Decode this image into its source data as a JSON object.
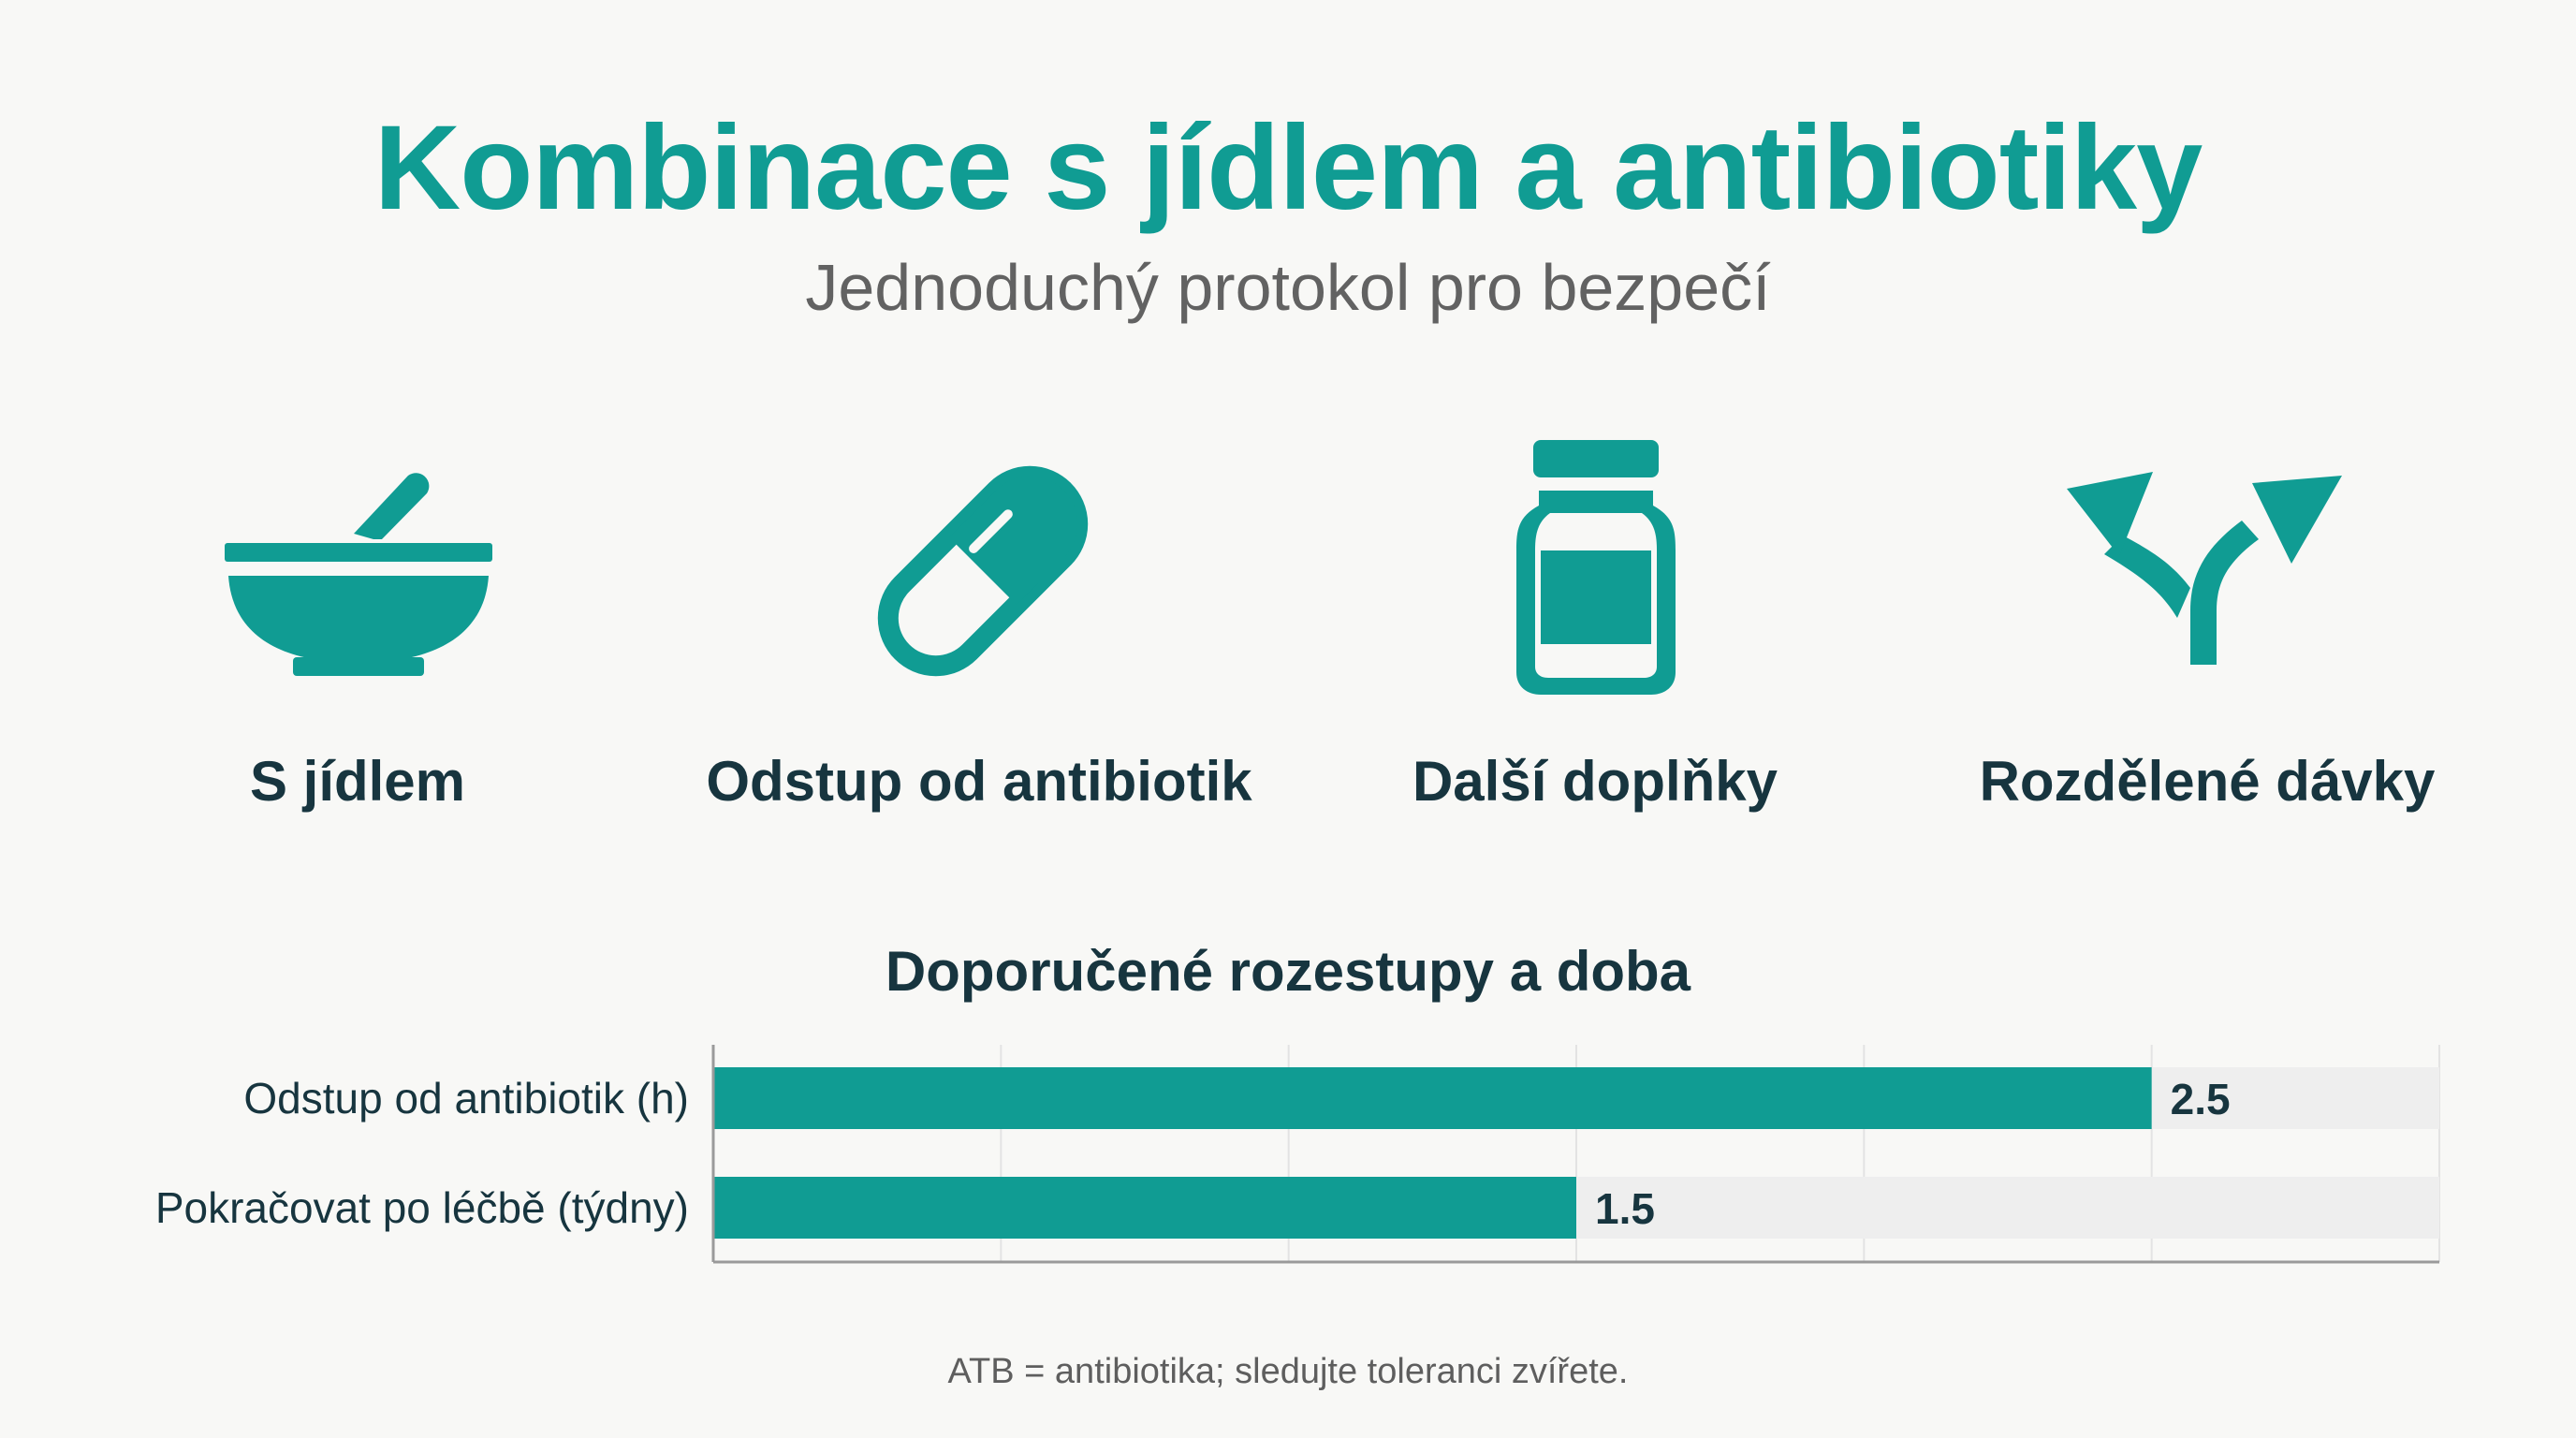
{
  "header": {
    "title": "Kombinace s jídlem a antibiotiky",
    "subtitle": "Jednoduchý protokol pro bezpečí"
  },
  "features": [
    {
      "label": "S jídlem",
      "icon": "bowl-icon"
    },
    {
      "label": "Odstup od antibiotik",
      "icon": "capsule-icon"
    },
    {
      "label": "Další doplňky",
      "icon": "supplement-bottle-icon"
    },
    {
      "label": "Rozdělené dávky",
      "icon": "split-arrows-icon"
    }
  ],
  "colors": {
    "accent": "#109c93",
    "dark_text": "#17353f",
    "track": "#eeeeee"
  },
  "chart_data": {
    "type": "bar",
    "orientation": "horizontal",
    "title": "Doporučené rozestupy a doba",
    "categories": [
      "Odstup od antibiotik (h)",
      "Pokračovat po léčbě (týdny)"
    ],
    "values": [
      2.5,
      1.5
    ],
    "value_labels": [
      "2.5",
      "1.5"
    ],
    "xlim": [
      0,
      3
    ],
    "grid": true,
    "legend": "none"
  },
  "footnote": "ATB = antibiotika; sledujte toleranci zvířete."
}
